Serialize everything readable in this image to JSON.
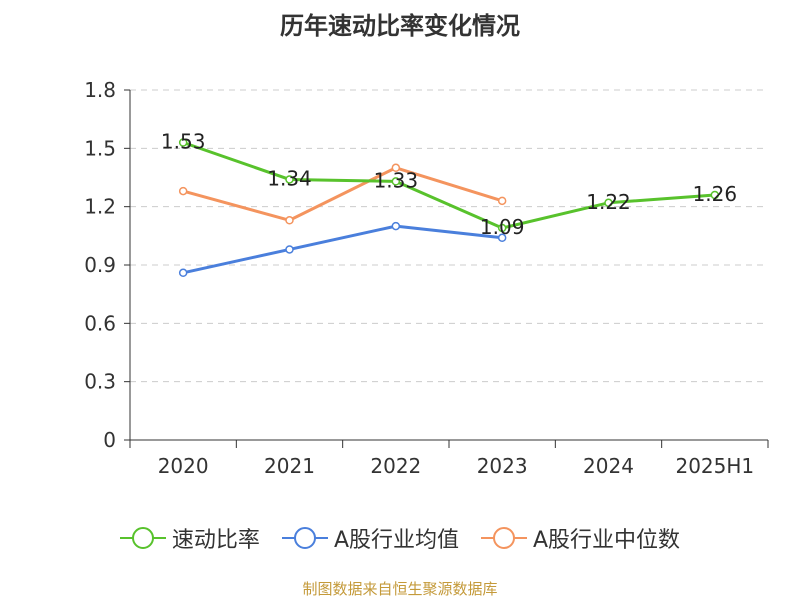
{
  "title": "历年速动比率变化情况",
  "source": "制图数据来自恒生聚源数据库",
  "chart_data": {
    "type": "line",
    "categories": [
      "2020",
      "2021",
      "2022",
      "2023",
      "2024",
      "2025H1"
    ],
    "yticks": [
      "0",
      "0.3",
      "0.6",
      "0.9",
      "1.2",
      "1.5",
      "1.8"
    ],
    "ylim": [
      0,
      1.8
    ],
    "grid": true,
    "legend_position": "bottom",
    "series": [
      {
        "name": "速动比率",
        "color": "#58c22c",
        "values": [
          1.53,
          1.34,
          1.33,
          1.09,
          1.22,
          1.26
        ],
        "labels": [
          "1.53",
          "1.34",
          "1.33",
          "1.09",
          "1.22",
          "1.26"
        ]
      },
      {
        "name": "A股行业均值",
        "color": "#4a7fdc",
        "values": [
          0.86,
          0.98,
          1.1,
          1.04,
          null,
          null
        ]
      },
      {
        "name": "A股行业中位数",
        "color": "#f4945e",
        "values": [
          1.28,
          1.13,
          1.4,
          1.23,
          null,
          null
        ]
      }
    ]
  }
}
